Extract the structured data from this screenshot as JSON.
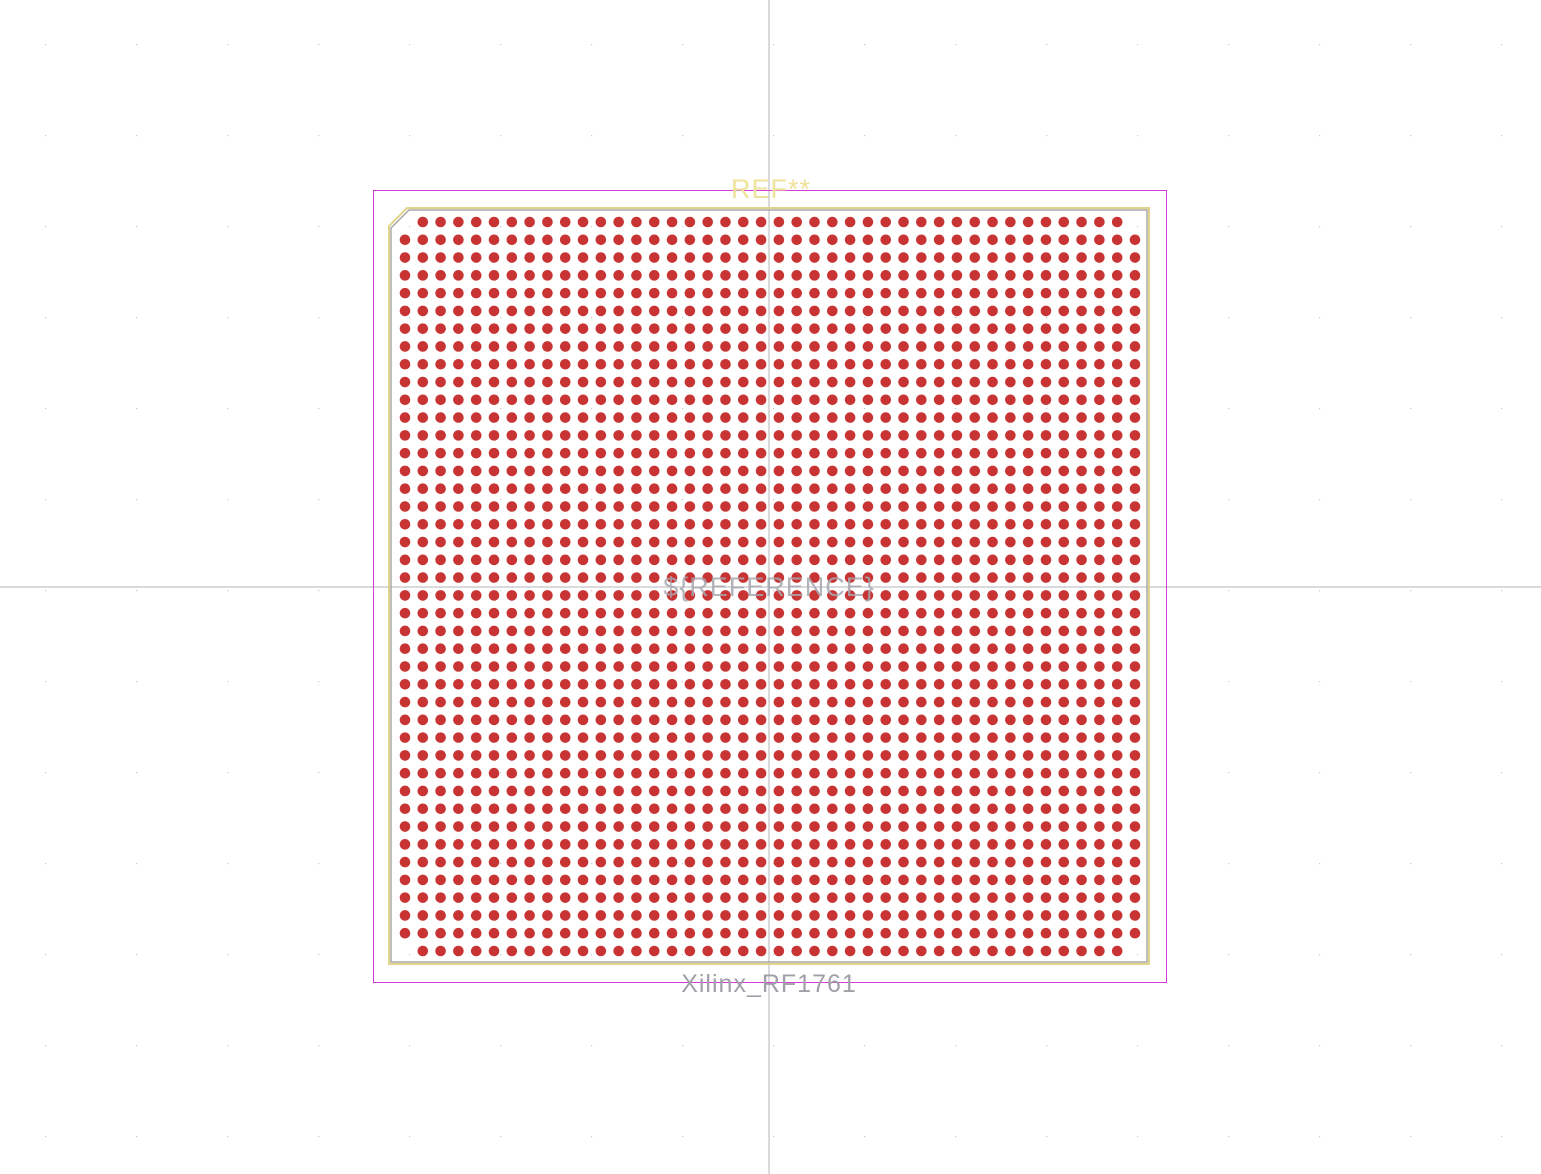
{
  "footprint": {
    "reference": "REF**",
    "value": "${REFERENCE}",
    "name": "Xilinx_RF1761",
    "ball_rows": 42,
    "ball_cols": 42,
    "missing_corner_balls": true
  },
  "colors": {
    "background": "#ffffff",
    "grid_dot": "#c8c8c8",
    "crosshair": "#b4b4b8",
    "courtyard": "#d23cd2",
    "fab_outline": "#a8a8a8",
    "silkscreen": "#e0d48a",
    "pad": "#c83434",
    "reference_text": "#efe29a",
    "value_text": "#a8a8b0",
    "fab_text": "#a0a0a8"
  }
}
